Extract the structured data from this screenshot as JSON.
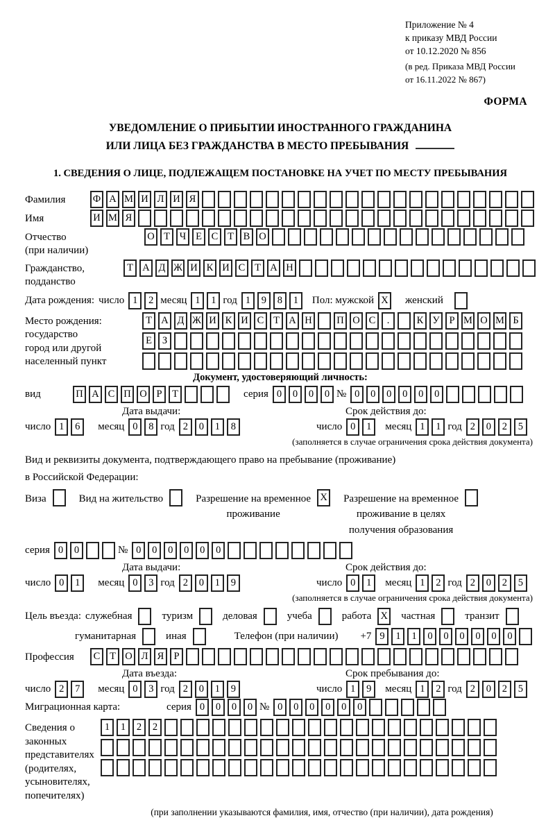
{
  "accent_colors": {
    "ink": "#000000",
    "cell_border": "#222222",
    "paper": "#ffffff"
  },
  "meta": {
    "note_lines": [
      "Приложение № 4",
      "к приказу МВД России",
      "от 10.12.2020 № 856"
    ],
    "note_edit_lines": [
      "(в ред. Приказа МВД России",
      "от 16.11.2022 № 867)"
    ],
    "forma_label": "ФОРМА"
  },
  "title": {
    "line1": "УВЕДОМЛЕНИЕ О ПРИБЫТИИ ИНОСТРАННОГО ГРАЖДАНИНА",
    "line2": "ИЛИ ЛИЦА БЕЗ ГРАЖДАНСТВА В МЕСТО ПРЕБЫВАНИЯ"
  },
  "section1": {
    "heading": "1. СВЕДЕНИЯ О ЛИЦЕ, ПОДЛЕЖАЩЕМ ПОСТАНОВКЕ НА УЧЕТ ПО МЕСТУ ПРЕБЫВАНИЯ"
  },
  "surname": {
    "label": "Фамилия",
    "cells": {
      "v": "ФАМИЛИЯ",
      "n": 28
    }
  },
  "firstname": {
    "label": "Имя",
    "cells": {
      "v": "ИМЯ",
      "n": 28
    }
  },
  "patronymic": {
    "label_line1": "Отчество",
    "label_line2": "(при наличии)",
    "cells": {
      "v": "ОТЧЕСТВО",
      "n": 24
    }
  },
  "citizenship": {
    "label_line1": "Гражданство,",
    "label_line2": "подданство",
    "cells": {
      "v": "ТАДЖИКИСТАН",
      "n": 26
    }
  },
  "birth_date": {
    "label": "Дата рождения:",
    "day_label": "число",
    "day": {
      "v": "12",
      "n": 2
    },
    "month_label": "месяц",
    "month": {
      "v": "11",
      "n": 2
    },
    "year_label": "год",
    "year": {
      "v": "1981",
      "n": 4
    },
    "sex_label": "Пол: мужской",
    "male_box": {
      "v": "X",
      "n": 1
    },
    "female_label": "женский",
    "female_box": {
      "v": "",
      "n": 1
    }
  },
  "birth_place": {
    "label_line1": "Место рождения:",
    "label_line2": "государство",
    "label_line3": "город или другой",
    "label_line4": "населенный пункт",
    "row1": {
      "v": "ТАДЖИКИСТАН ПОС. КУРМОМБ",
      "n": 24
    },
    "row2": {
      "v": "ЕЗ",
      "n": 24
    },
    "row3": {
      "v": "",
      "n": 24
    }
  },
  "identity_doc": {
    "heading": "Документ, удостоверяющий личность:",
    "type_label": "вид",
    "type_cells": {
      "v": "ПАСПОРТ",
      "n": 10
    },
    "series_label": "серия",
    "series_cells": {
      "v": "0000",
      "n": 4
    },
    "number_label": "№",
    "number_cells": {
      "v": "000000",
      "n": 11
    },
    "issue_label": "Дата выдачи:",
    "issue": {
      "day_label": "число",
      "day": {
        "v": "16",
        "n": 2
      },
      "month_label": "месяц",
      "month": {
        "v": "08",
        "n": 2
      },
      "year_label": "год",
      "year": {
        "v": "2018",
        "n": 4
      }
    },
    "expiry_label": "Срок действия до:",
    "expiry": {
      "day_label": "число",
      "day": {
        "v": "01",
        "n": 2
      },
      "month_label": "месяц",
      "month": {
        "v": "11",
        "n": 2
      },
      "year_label": "год",
      "year": {
        "v": "2025",
        "n": 4
      }
    },
    "footnote": "(заполняется в случае ограничения срока действия документа)"
  },
  "residence_doc": {
    "intro_line1": "Вид и реквизиты документа, подтверждающего право на пребывание (проживание)",
    "intro_line2": "в Российской Федерации:",
    "options": [
      {
        "label_lines": [
          "Виза"
        ],
        "box": {
          "v": ""
        }
      },
      {
        "label_lines": [
          "Вид на жительство"
        ],
        "box": {
          "v": ""
        }
      },
      {
        "label_lines": [
          "Разрешение на временное",
          "проживание"
        ],
        "box": {
          "v": "X"
        }
      },
      {
        "label_lines": [
          "Разрешение на временное",
          "проживание в целях",
          "получения образования"
        ],
        "box": {
          "v": ""
        }
      }
    ],
    "series_label": "серия",
    "series_cells": {
      "v": "00",
      "n": 4
    },
    "number_label": "№",
    "number_cells": {
      "v": "000000",
      "n": 14
    },
    "issue_label": "Дата выдачи:",
    "issue": {
      "day_label": "число",
      "day": {
        "v": "01",
        "n": 2
      },
      "month_label": "месяц",
      "month": {
        "v": "03",
        "n": 2
      },
      "year_label": "год",
      "year": {
        "v": "2019",
        "n": 4
      }
    },
    "expiry_label": "Срок действия до:",
    "expiry": {
      "day_label": "число",
      "day": {
        "v": "01",
        "n": 2
      },
      "month_label": "месяц",
      "month": {
        "v": "12",
        "n": 2
      },
      "year_label": "год",
      "year": {
        "v": "2025",
        "n": 4
      }
    },
    "footnote": "(заполняется в случае ограничения срока действия документа)"
  },
  "visit_purpose": {
    "label": "Цель въезда:",
    "options_row1": [
      {
        "label": "служебная",
        "box": {
          "v": ""
        }
      },
      {
        "label": "туризм",
        "box": {
          "v": ""
        }
      },
      {
        "label": "деловая",
        "box": {
          "v": ""
        }
      },
      {
        "label": "учеба",
        "box": {
          "v": ""
        }
      },
      {
        "label": "работа",
        "box": {
          "v": "X"
        }
      },
      {
        "label": "частная",
        "box": {
          "v": ""
        }
      },
      {
        "label": "транзит",
        "box": {
          "v": ""
        }
      }
    ],
    "options_row2": [
      {
        "label": "гуманитарная",
        "box": {
          "v": ""
        }
      },
      {
        "label": "иная",
        "box": {
          "v": ""
        }
      }
    ],
    "phone_label": "Телефон (при наличии)",
    "phone_prefix": "+7",
    "phone_cells": {
      "v": "911000000",
      "n": 10
    }
  },
  "profession": {
    "label": "Профессия",
    "cells": {
      "v": "СТОЛЯР",
      "n": 27
    }
  },
  "entry": {
    "entry_label": "Дата въезда:",
    "entry_date": {
      "day_label": "число",
      "day": {
        "v": "27",
        "n": 2
      },
      "month_label": "месяц",
      "month": {
        "v": "03",
        "n": 2
      },
      "year_label": "год",
      "year": {
        "v": "2019",
        "n": 4
      }
    },
    "stay_label": "Срок пребывания до:",
    "stay_date": {
      "day_label": "число",
      "day": {
        "v": "19",
        "n": 2
      },
      "month_label": "месяц",
      "month": {
        "v": "12",
        "n": 2
      },
      "year_label": "год",
      "year": {
        "v": "2025",
        "n": 4
      }
    }
  },
  "migration_card": {
    "label": "Миграционная карта:",
    "series_label": "серия",
    "series_cells": {
      "v": "0000",
      "n": 4
    },
    "number_label": "№",
    "number_cells": {
      "v": "000000",
      "n": 11
    }
  },
  "representatives": {
    "label_line1": "Сведения о",
    "label_line2": "законных",
    "label_line3": "представителях",
    "label_line4": "(родителях,",
    "label_line5": "усыновителях,",
    "label_line6": "попечителях)",
    "row1": {
      "v": "1122",
      "n": 25
    },
    "row2": {
      "v": "",
      "n": 25
    },
    "row3": {
      "v": "",
      "n": 25
    },
    "footnote": "(при заполнении указываются фамилия, имя, отчество (при наличии), дата рождения)"
  }
}
